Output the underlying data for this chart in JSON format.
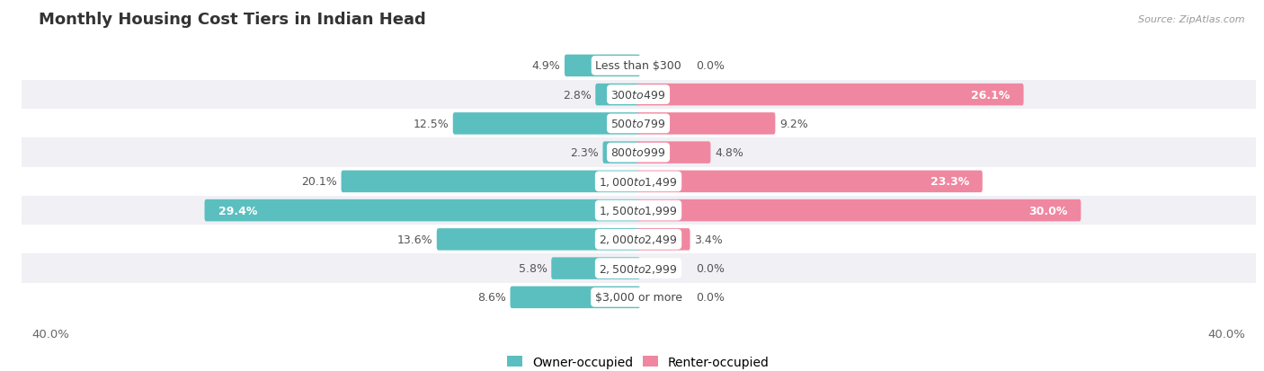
{
  "title": "Monthly Housing Cost Tiers in Indian Head",
  "source": "Source: ZipAtlas.com",
  "categories": [
    "Less than $300",
    "$300 to $499",
    "$500 to $799",
    "$800 to $999",
    "$1,000 to $1,499",
    "$1,500 to $1,999",
    "$2,000 to $2,499",
    "$2,500 to $2,999",
    "$3,000 or more"
  ],
  "owner_values": [
    4.9,
    2.8,
    12.5,
    2.3,
    20.1,
    29.4,
    13.6,
    5.8,
    8.6
  ],
  "renter_values": [
    0.0,
    26.1,
    9.2,
    4.8,
    23.3,
    30.0,
    3.4,
    0.0,
    0.0
  ],
  "owner_color": "#5bbfbf",
  "renter_color": "#f087a0",
  "row_colors": [
    "#ffffff",
    "#f0f0f5"
  ],
  "axis_limit": 40.0,
  "bar_height": 0.52,
  "label_fontsize": 9.0,
  "title_fontsize": 13,
  "legend_fontsize": 10,
  "owner_label_white_threshold": 22,
  "renter_label_white_threshold": 18
}
